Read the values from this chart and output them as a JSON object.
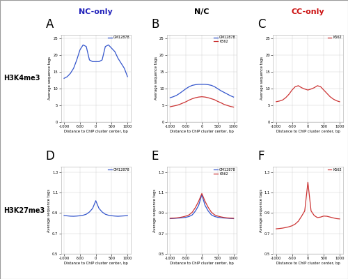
{
  "col_titles": [
    "NC-only",
    "N/C",
    "CC-only"
  ],
  "col_title_colors": [
    "#2222bb",
    "#000000",
    "#cc1111"
  ],
  "row_labels": [
    "H3K4me3",
    "H3K27me3"
  ],
  "panel_labels": [
    "A",
    "B",
    "C",
    "D",
    "E",
    "F"
  ],
  "xlabel": "Distance to ChIP cluster center, bp",
  "ylabel": "Average sequence tags",
  "blue_color": "#3355cc",
  "red_color": "#cc3333",
  "x": [
    -1000,
    -900,
    -800,
    -700,
    -600,
    -500,
    -400,
    -300,
    -200,
    -100,
    0,
    100,
    200,
    300,
    400,
    500,
    600,
    700,
    800,
    900,
    1000
  ],
  "panel_A": {
    "GM12878": [
      13.0,
      13.5,
      14.5,
      16.0,
      18.5,
      21.5,
      23.0,
      22.5,
      18.5,
      18.0,
      18.0,
      18.0,
      18.5,
      22.5,
      23.0,
      22.0,
      21.0,
      19.0,
      17.5,
      16.0,
      13.5
    ],
    "K562": null,
    "ylim": [
      0,
      26
    ],
    "yticks": [
      0,
      5,
      10,
      15,
      20,
      25
    ]
  },
  "panel_B": {
    "GM12878": [
      7.2,
      7.5,
      7.9,
      8.5,
      9.2,
      9.9,
      10.5,
      10.9,
      11.1,
      11.2,
      11.2,
      11.2,
      11.1,
      10.9,
      10.5,
      9.9,
      9.3,
      8.8,
      8.3,
      7.8,
      7.4
    ],
    "K562": [
      4.5,
      4.7,
      4.9,
      5.2,
      5.6,
      6.0,
      6.5,
      6.9,
      7.2,
      7.4,
      7.5,
      7.4,
      7.2,
      6.9,
      6.6,
      6.1,
      5.7,
      5.2,
      4.9,
      4.6,
      4.4
    ],
    "ylim": [
      0,
      26
    ],
    "yticks": [
      0,
      5,
      10,
      15,
      20,
      25
    ]
  },
  "panel_C": {
    "GM12878": null,
    "K562": [
      6.0,
      6.2,
      6.5,
      7.2,
      8.2,
      9.5,
      10.5,
      10.8,
      10.2,
      9.8,
      9.5,
      9.8,
      10.2,
      10.8,
      10.5,
      9.5,
      8.5,
      7.5,
      6.8,
      6.3,
      6.0
    ],
    "ylim": [
      0,
      26
    ],
    "yticks": [
      0,
      5,
      10,
      15,
      20,
      25
    ]
  },
  "panel_D": {
    "GM12878": [
      0.875,
      0.872,
      0.869,
      0.868,
      0.87,
      0.873,
      0.878,
      0.888,
      0.91,
      0.945,
      1.02,
      0.945,
      0.91,
      0.888,
      0.878,
      0.873,
      0.87,
      0.868,
      0.87,
      0.872,
      0.875
    ],
    "K562": null,
    "ylim": [
      0.5,
      1.35
    ],
    "yticks": [
      0.5,
      0.7,
      0.9,
      1.1,
      1.3
    ]
  },
  "panel_E": {
    "GM12878": [
      0.845,
      0.847,
      0.849,
      0.851,
      0.854,
      0.858,
      0.866,
      0.882,
      0.92,
      0.975,
      1.08,
      0.975,
      0.92,
      0.882,
      0.866,
      0.858,
      0.854,
      0.851,
      0.849,
      0.847,
      0.845
    ],
    "K562": [
      0.848,
      0.85,
      0.852,
      0.856,
      0.862,
      0.87,
      0.882,
      0.908,
      0.955,
      1.015,
      1.09,
      1.015,
      0.955,
      0.908,
      0.882,
      0.87,
      0.862,
      0.856,
      0.852,
      0.85,
      0.848
    ],
    "ylim": [
      0.5,
      1.35
    ],
    "yticks": [
      0.5,
      0.7,
      0.9,
      1.1,
      1.3
    ]
  },
  "panel_F": {
    "GM12878": null,
    "K562": [
      0.745,
      0.748,
      0.752,
      0.758,
      0.765,
      0.775,
      0.792,
      0.82,
      0.868,
      0.92,
      1.2,
      0.92,
      0.875,
      0.855,
      0.86,
      0.87,
      0.868,
      0.86,
      0.852,
      0.845,
      0.842
    ],
    "ylim": [
      0.5,
      1.35
    ],
    "yticks": [
      0.5,
      0.7,
      0.9,
      1.1,
      1.3
    ]
  }
}
